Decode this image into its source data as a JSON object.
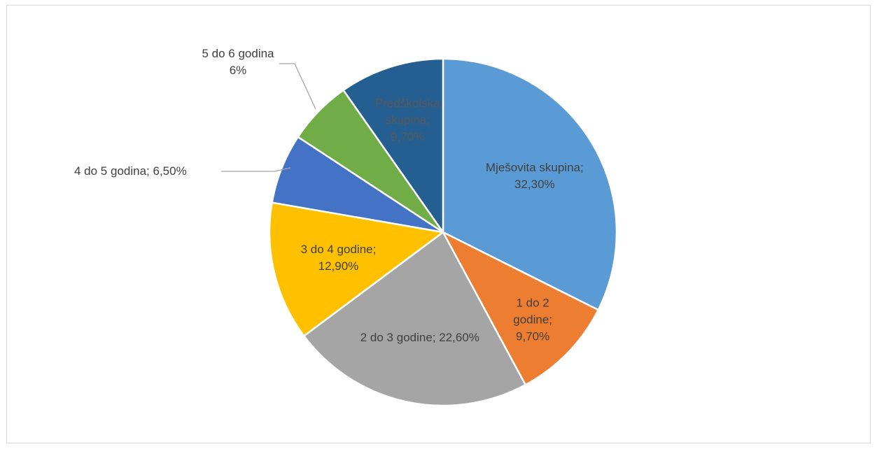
{
  "chart_data": {
    "type": "pie",
    "slices": [
      {
        "label": "Mješovita skupina",
        "value": 32.3,
        "display": "32,30%",
        "color": "#5b9bd5",
        "label_color": "#404040",
        "label_mode": "inside",
        "lines": [
          "Mješovita skupina;",
          "32,30%"
        ]
      },
      {
        "label": "1 do 2 godine",
        "value": 9.7,
        "display": "9,70%",
        "color": "#ed7d31",
        "label_color": "#404040",
        "label_mode": "inside",
        "lines": [
          "1 do 2",
          "godine;",
          "9,70%"
        ]
      },
      {
        "label": "2 do 3 godine",
        "value": 22.6,
        "display": "22,60%",
        "color": "#a5a5a5",
        "label_color": "#404040",
        "label_mode": "inside",
        "lines": [
          "2 do 3 godine; 22,60%"
        ]
      },
      {
        "label": "3 do 4 godine",
        "value": 12.9,
        "display": "12,90%",
        "color": "#ffc000",
        "label_color": "#404040",
        "label_mode": "inside",
        "lines": [
          "3 do 4 godine;",
          "12,90%"
        ]
      },
      {
        "label": "4 do 5 godina",
        "value": 6.5,
        "display": "6,50%",
        "color": "#4472c4",
        "label_color": "#404040",
        "label_mode": "outside",
        "lines": [
          "4 do 5 godina; 6,50%"
        ]
      },
      {
        "label": "5 do 6 godina",
        "value": 6.0,
        "display": "6%",
        "color": "#70ad47",
        "label_color": "#404040",
        "label_mode": "outside",
        "lines": [
          "5 do 6 godina",
          "6%"
        ]
      },
      {
        "label": "Predškolska skupina",
        "value": 9.7,
        "display": "9,70%",
        "color": "#255e91",
        "label_color": "#595959",
        "label_mode": "inside",
        "lines": [
          "Predškolska",
          "skupina;",
          "9,70%"
        ]
      }
    ],
    "title": "",
    "start_angle_deg": 0,
    "direction": "clockwise",
    "slice_border_color": "#ffffff",
    "leader_line_color": "#a6a6a6"
  }
}
